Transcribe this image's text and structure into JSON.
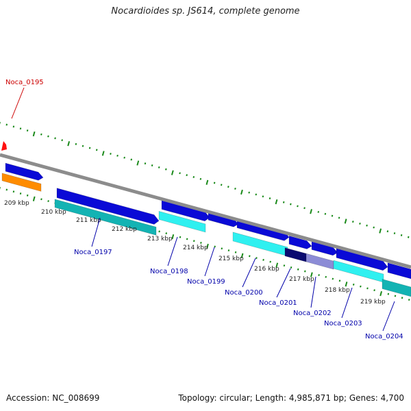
{
  "title": "Nocardioides sp. JS614, complete genome",
  "footer": {
    "accession": "Accession: NC_008699",
    "summary": "Topology: circular; Length: 4,985,871 bp; Genes: 4,700"
  },
  "colors": {
    "backbone": "#8c8c8c",
    "tick": "#1a8a1a",
    "label_blue": "#0000aa",
    "label_red": "#cc0000",
    "forward_gene": "#0a0ad6",
    "orange": "#ff8c00",
    "teal": "#13b3b3",
    "cyan": "#2ff0f0",
    "navy": "#0a0a70",
    "lavender": "#8c8cd6"
  },
  "scale": {
    "unit": "kbp",
    "labels": [
      "209 kbp",
      "210 kbp",
      "211 kbp",
      "212 kbp",
      "213 kbp",
      "214 kbp",
      "215 kbp",
      "216 kbp",
      "217 kbp",
      "218 kbp",
      "219 kbp"
    ]
  },
  "genes": [
    {
      "label": "Noca_0195",
      "color": "label_red"
    },
    {
      "label": "Noca_0197",
      "color": "label_blue"
    },
    {
      "label": "Noca_0198",
      "color": "label_blue"
    },
    {
      "label": "Noca_0199",
      "color": "label_blue"
    },
    {
      "label": "Noca_0200",
      "color": "label_blue"
    },
    {
      "label": "Noca_0201",
      "color": "label_blue"
    },
    {
      "label": "Noca_0202",
      "color": "label_blue"
    },
    {
      "label": "Noca_0203",
      "color": "label_blue"
    },
    {
      "label": "Noca_0204",
      "color": "label_blue"
    }
  ]
}
